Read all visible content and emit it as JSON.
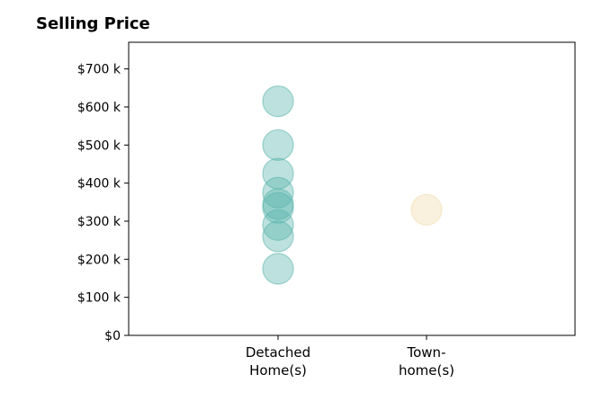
{
  "chart_data": {
    "type": "scatter",
    "title": "Selling Price",
    "categories": [
      "Detached\nHome(s)",
      "Town-\nhome(s)"
    ],
    "ylim": [
      0,
      770000
    ],
    "yticks": [
      0,
      100000,
      200000,
      300000,
      400000,
      500000,
      600000,
      700000
    ],
    "ytick_labels": [
      "$0",
      "$100 k",
      "$200 k",
      "$300 k",
      "$400 k",
      "$500 k",
      "$600 k",
      "$700 k"
    ],
    "grid": false,
    "series": [
      {
        "category": "Detached\nHome(s)",
        "color": "#5ab4ac",
        "values": [
          615000,
          500000,
          425000,
          375000,
          345000,
          335000,
          290000,
          260000,
          175000
        ]
      },
      {
        "category": "Town-\nhome(s)",
        "color": "#f0dcac",
        "values": [
          330000
        ]
      }
    ]
  }
}
